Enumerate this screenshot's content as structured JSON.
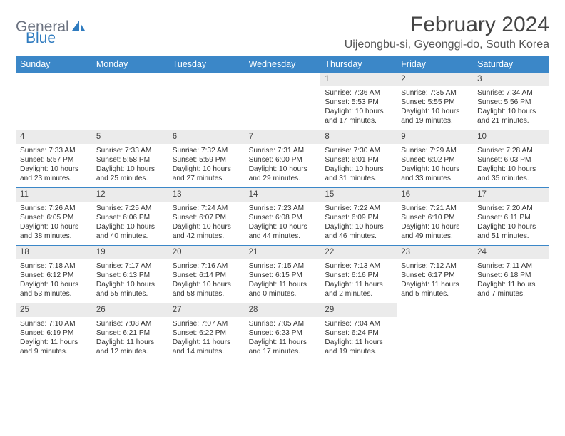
{
  "logo": {
    "part1": "General",
    "part2": "Blue"
  },
  "title": "February 2024",
  "location": "Uijeongbu-si, Gyeonggi-do, South Korea",
  "colors": {
    "header_bg": "#3b87c8",
    "header_text": "#ffffff",
    "daynum_bg": "#ebebeb",
    "week_border": "#3b87c8",
    "text": "#333333",
    "logo_gray": "#6b7280",
    "logo_blue": "#2f7bbf",
    "background": "#ffffff"
  },
  "typography": {
    "title_fontsize": 30,
    "location_fontsize": 16,
    "header_fontsize": 12.5,
    "cell_fontsize": 10.2,
    "daynum_fontsize": 11.5
  },
  "layout": {
    "columns": 7,
    "first_day_column": 4,
    "days_in_month": 29
  },
  "weekdays": [
    "Sunday",
    "Monday",
    "Tuesday",
    "Wednesday",
    "Thursday",
    "Friday",
    "Saturday"
  ],
  "days": [
    {
      "n": 1,
      "sunrise": "7:36 AM",
      "sunset": "5:53 PM",
      "daylight": "10 hours and 17 minutes."
    },
    {
      "n": 2,
      "sunrise": "7:35 AM",
      "sunset": "5:55 PM",
      "daylight": "10 hours and 19 minutes."
    },
    {
      "n": 3,
      "sunrise": "7:34 AM",
      "sunset": "5:56 PM",
      "daylight": "10 hours and 21 minutes."
    },
    {
      "n": 4,
      "sunrise": "7:33 AM",
      "sunset": "5:57 PM",
      "daylight": "10 hours and 23 minutes."
    },
    {
      "n": 5,
      "sunrise": "7:33 AM",
      "sunset": "5:58 PM",
      "daylight": "10 hours and 25 minutes."
    },
    {
      "n": 6,
      "sunrise": "7:32 AM",
      "sunset": "5:59 PM",
      "daylight": "10 hours and 27 minutes."
    },
    {
      "n": 7,
      "sunrise": "7:31 AM",
      "sunset": "6:00 PM",
      "daylight": "10 hours and 29 minutes."
    },
    {
      "n": 8,
      "sunrise": "7:30 AM",
      "sunset": "6:01 PM",
      "daylight": "10 hours and 31 minutes."
    },
    {
      "n": 9,
      "sunrise": "7:29 AM",
      "sunset": "6:02 PM",
      "daylight": "10 hours and 33 minutes."
    },
    {
      "n": 10,
      "sunrise": "7:28 AM",
      "sunset": "6:03 PM",
      "daylight": "10 hours and 35 minutes."
    },
    {
      "n": 11,
      "sunrise": "7:26 AM",
      "sunset": "6:05 PM",
      "daylight": "10 hours and 38 minutes."
    },
    {
      "n": 12,
      "sunrise": "7:25 AM",
      "sunset": "6:06 PM",
      "daylight": "10 hours and 40 minutes."
    },
    {
      "n": 13,
      "sunrise": "7:24 AM",
      "sunset": "6:07 PM",
      "daylight": "10 hours and 42 minutes."
    },
    {
      "n": 14,
      "sunrise": "7:23 AM",
      "sunset": "6:08 PM",
      "daylight": "10 hours and 44 minutes."
    },
    {
      "n": 15,
      "sunrise": "7:22 AM",
      "sunset": "6:09 PM",
      "daylight": "10 hours and 46 minutes."
    },
    {
      "n": 16,
      "sunrise": "7:21 AM",
      "sunset": "6:10 PM",
      "daylight": "10 hours and 49 minutes."
    },
    {
      "n": 17,
      "sunrise": "7:20 AM",
      "sunset": "6:11 PM",
      "daylight": "10 hours and 51 minutes."
    },
    {
      "n": 18,
      "sunrise": "7:18 AM",
      "sunset": "6:12 PM",
      "daylight": "10 hours and 53 minutes."
    },
    {
      "n": 19,
      "sunrise": "7:17 AM",
      "sunset": "6:13 PM",
      "daylight": "10 hours and 55 minutes."
    },
    {
      "n": 20,
      "sunrise": "7:16 AM",
      "sunset": "6:14 PM",
      "daylight": "10 hours and 58 minutes."
    },
    {
      "n": 21,
      "sunrise": "7:15 AM",
      "sunset": "6:15 PM",
      "daylight": "11 hours and 0 minutes."
    },
    {
      "n": 22,
      "sunrise": "7:13 AM",
      "sunset": "6:16 PM",
      "daylight": "11 hours and 2 minutes."
    },
    {
      "n": 23,
      "sunrise": "7:12 AM",
      "sunset": "6:17 PM",
      "daylight": "11 hours and 5 minutes."
    },
    {
      "n": 24,
      "sunrise": "7:11 AM",
      "sunset": "6:18 PM",
      "daylight": "11 hours and 7 minutes."
    },
    {
      "n": 25,
      "sunrise": "7:10 AM",
      "sunset": "6:19 PM",
      "daylight": "11 hours and 9 minutes."
    },
    {
      "n": 26,
      "sunrise": "7:08 AM",
      "sunset": "6:21 PM",
      "daylight": "11 hours and 12 minutes."
    },
    {
      "n": 27,
      "sunrise": "7:07 AM",
      "sunset": "6:22 PM",
      "daylight": "11 hours and 14 minutes."
    },
    {
      "n": 28,
      "sunrise": "7:05 AM",
      "sunset": "6:23 PM",
      "daylight": "11 hours and 17 minutes."
    },
    {
      "n": 29,
      "sunrise": "7:04 AM",
      "sunset": "6:24 PM",
      "daylight": "11 hours and 19 minutes."
    }
  ],
  "labels": {
    "sunrise": "Sunrise:",
    "sunset": "Sunset:",
    "daylight": "Daylight:"
  }
}
